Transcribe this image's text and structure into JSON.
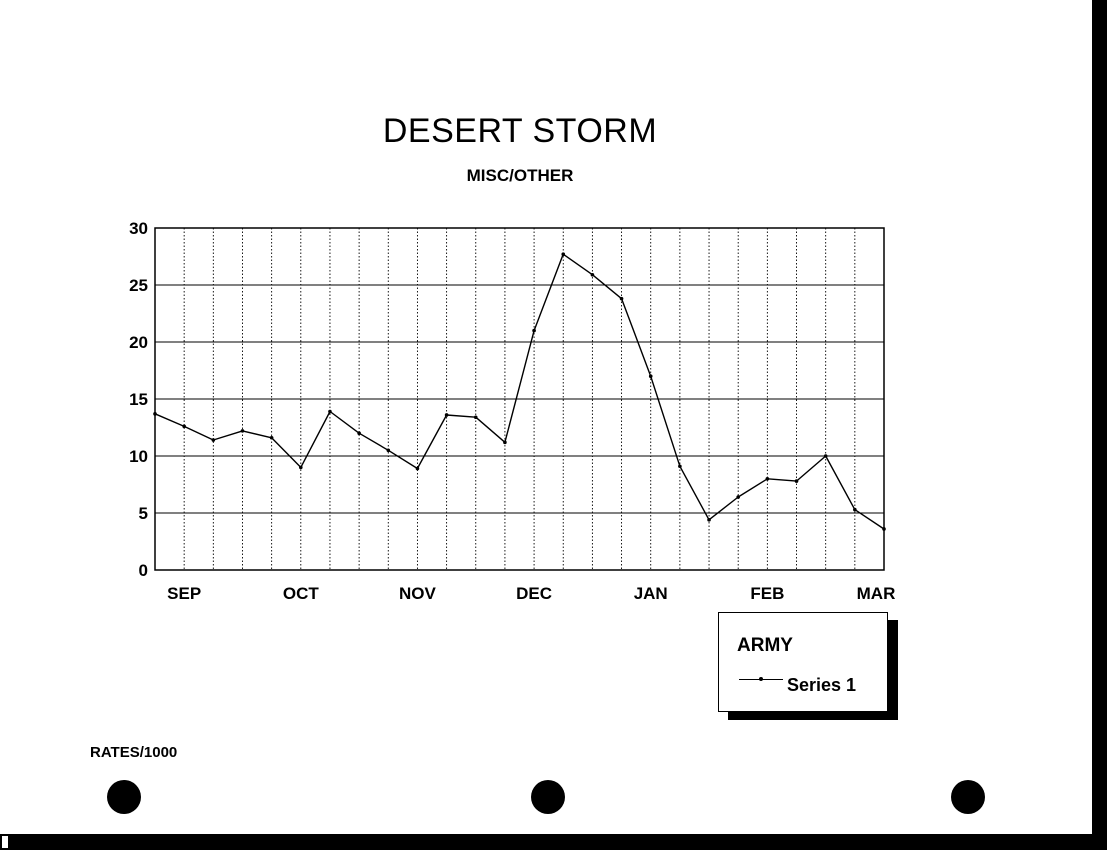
{
  "chart_data": {
    "type": "line",
    "title": "DESERT STORM",
    "subtitle": "MISC/OTHER",
    "ylabel": "RATES/1000",
    "xlabel": "",
    "ylim": [
      0,
      30
    ],
    "yticks": [
      0,
      5,
      10,
      15,
      20,
      25,
      30
    ],
    "month_labels": [
      "SEP",
      "OCT",
      "NOV",
      "DEC",
      "JAN",
      "FEB",
      "MAR"
    ],
    "grid": true,
    "legend": {
      "title": "ARMY",
      "position": "bottom-right"
    },
    "series": [
      {
        "name": "Series 1",
        "values": [
          13.7,
          12.6,
          11.4,
          12.2,
          11.6,
          9.0,
          13.9,
          12.0,
          10.5,
          8.9,
          13.6,
          13.4,
          11.2,
          21.0,
          27.7,
          25.9,
          23.8,
          17.0,
          9.1,
          4.4,
          6.4,
          8.0,
          7.8,
          10.0,
          5.3,
          3.6
        ]
      }
    ]
  }
}
